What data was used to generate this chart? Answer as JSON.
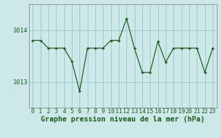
{
  "x": [
    0,
    1,
    2,
    3,
    4,
    5,
    6,
    7,
    8,
    9,
    10,
    11,
    12,
    13,
    14,
    15,
    16,
    17,
    18,
    19,
    20,
    21,
    22,
    23
  ],
  "y": [
    1013.8,
    1013.8,
    1013.65,
    1013.65,
    1013.65,
    1013.4,
    1012.82,
    1013.65,
    1013.65,
    1013.65,
    1013.8,
    1013.8,
    1014.22,
    1013.65,
    1013.18,
    1013.18,
    1013.78,
    1013.38,
    1013.65,
    1013.65,
    1013.65,
    1013.65,
    1013.18,
    1013.65
  ],
  "title": "Graphe pression niveau de la mer (hPa)",
  "bg_color": "#cce8e8",
  "grid_color": "#99cccc",
  "line_color": "#1a5c1a",
  "marker_color": "#1a5c1a",
  "text_color": "#1a5c1a",
  "ylim": [
    1012.5,
    1014.5
  ],
  "yticks": [
    1013,
    1014
  ],
  "title_fontsize": 7.5,
  "tick_fontsize": 6.5
}
